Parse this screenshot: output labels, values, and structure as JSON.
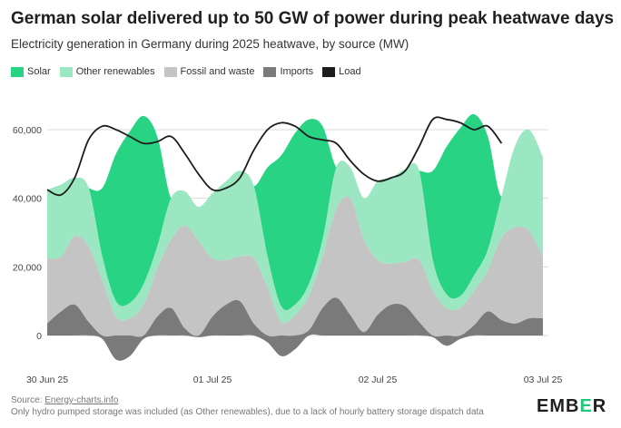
{
  "chart_data": {
    "type": "area",
    "title": "German solar delivered up to 50 GW of power during peak heatwave days",
    "subtitle": "Electricity generation in Germany during 2025 heatwave, by source (MW)",
    "x_axis": {
      "start": "30 Jun 25 00:00",
      "end": "03 Jul 25 00:00",
      "step_hours": 2,
      "tick_labels": [
        "30 Jun 25",
        "01 Jul 25",
        "02 Jul 25",
        "03 Jul 25"
      ]
    },
    "y_axis": {
      "ticks": [
        0,
        20000,
        40000,
        60000
      ],
      "tick_labels": [
        "0",
        "20,000",
        "40,000",
        "60,000"
      ],
      "ylim": [
        -9000,
        68000
      ]
    },
    "grid": "horizontal",
    "legend_position": "top-left",
    "series": [
      {
        "name": "Imports",
        "color": "#7a7a7a",
        "values": [
          3500,
          7000,
          9000,
          4000,
          -1000,
          -7000,
          -6000,
          -1000,
          5500,
          8000,
          2000,
          -500,
          5500,
          9000,
          10000,
          3500,
          -2000,
          -6000,
          -4000,
          1500,
          8000,
          11000,
          6000,
          1000,
          6000,
          9000,
          8500,
          4000,
          -500,
          -3000,
          -1000,
          3000,
          7000,
          4500,
          3500,
          5000,
          5000
        ]
      },
      {
        "name": "Fossil and waste",
        "color": "#c4c4c4",
        "values": [
          19000,
          16000,
          20000,
          22000,
          16000,
          5500,
          5000,
          9000,
          14000,
          20000,
          30000,
          27500,
          17000,
          13000,
          13000,
          19000,
          14000,
          4000,
          6000,
          10000,
          15000,
          26000,
          34000,
          27000,
          16000,
          12000,
          13000,
          18000,
          13000,
          8000,
          8000,
          10000,
          12000,
          24000,
          28000,
          25500,
          18000
        ]
      },
      {
        "name": "Other renewables",
        "color": "#9ae7c2",
        "values": [
          20000,
          21000,
          17000,
          17000,
          7000,
          4500,
          4500,
          6000,
          6500,
          12000,
          10000,
          10000,
          19000,
          23000,
          25000,
          21000,
          9000,
          4500,
          3000,
          3500,
          5000,
          12000,
          9000,
          12000,
          23000,
          25000,
          27000,
          26000,
          9000,
          4000,
          3500,
          4500,
          6000,
          12000,
          24000,
          29500,
          29000
        ]
      },
      {
        "name": "Solar",
        "color": "#28d384",
        "values": [
          0,
          0,
          0,
          0,
          20000,
          43000,
          50000,
          49000,
          32000,
          0,
          0,
          0,
          0,
          0,
          0,
          0,
          26000,
          44000,
          50000,
          48000,
          33000,
          0,
          0,
          0,
          0,
          0,
          0,
          0,
          26000,
          43000,
          49000,
          47000,
          33000,
          0,
          0,
          0,
          0
        ]
      },
      {
        "name": "Load",
        "color": "#1c1c1c",
        "line": true,
        "values": [
          42500,
          41000,
          46000,
          57000,
          61000,
          60000,
          58000,
          56000,
          56500,
          58000,
          53000,
          47000,
          42500,
          43000,
          46000,
          54000,
          60000,
          62000,
          61000,
          58000,
          57000,
          56000,
          51000,
          47000,
          45000,
          46000,
          48000,
          55000,
          63000,
          63000,
          62000,
          60000,
          61000,
          56000,
          null,
          null,
          null
        ]
      }
    ]
  },
  "footer": {
    "source_prefix": "Source: ",
    "source_link": "Energy-charts.info",
    "note": "Only hydro pumped storage was included (as Other renewables), due to a lack of hourly battery storage dispatch data"
  },
  "brand": {
    "before": "EMB",
    "accent": "E",
    "after": "R"
  }
}
